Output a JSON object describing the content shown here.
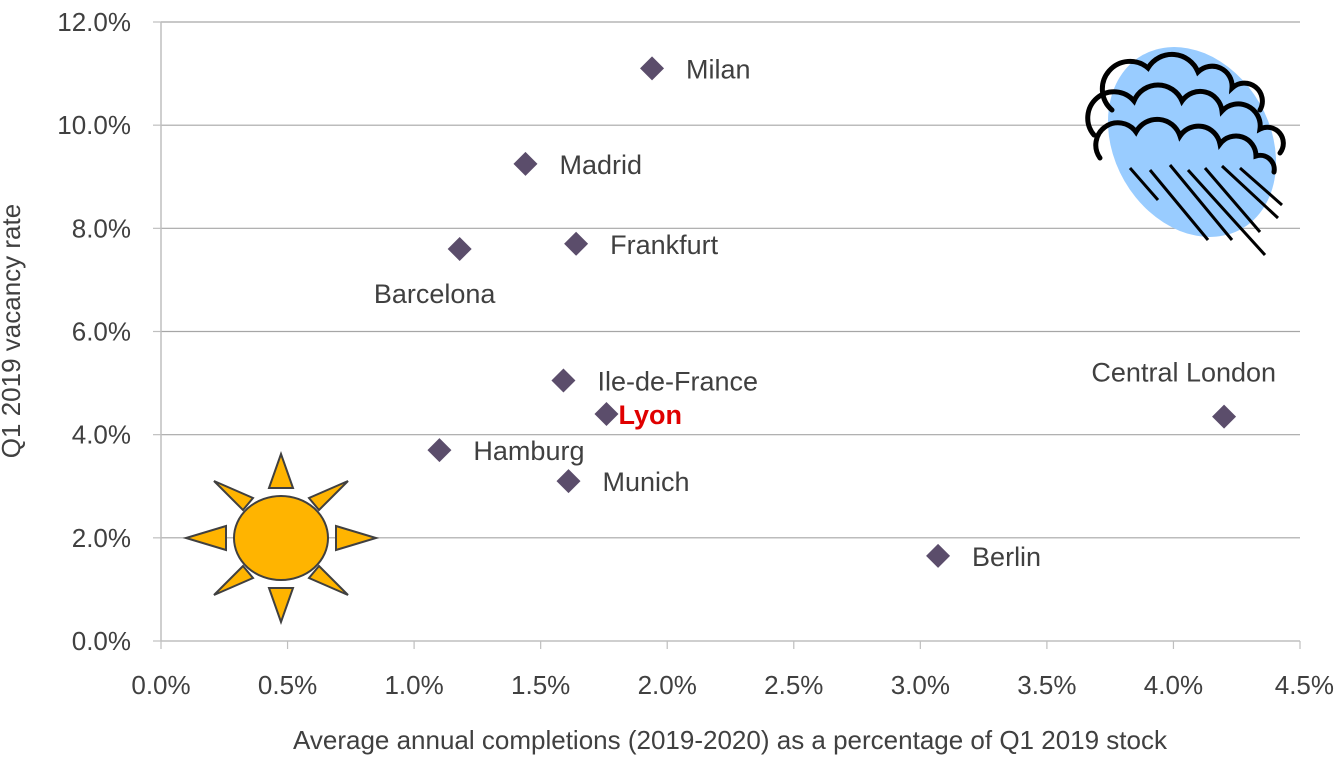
{
  "chart_data": {
    "type": "scatter",
    "xlabel": "Average annual completions (2019-2020) as a percentage of Q1 2019 stock",
    "ylabel": "Q1 2019 vacancy rate",
    "xlim": [
      0,
      4.5
    ],
    "ylim": [
      0,
      12
    ],
    "x_ticks": [
      0,
      0.5,
      1,
      1.5,
      2,
      2.5,
      3,
      3.5,
      4,
      4.5
    ],
    "x_tick_labels": [
      "0.0%",
      "0.5%",
      "1.0%",
      "1.5%",
      "2.0%",
      "2.5%",
      "3.0%",
      "3.5%",
      "4.0%",
      "4.5%"
    ],
    "y_ticks": [
      0,
      2,
      4,
      6,
      8,
      10,
      12
    ],
    "y_tick_labels": [
      "0.0%",
      "2.0%",
      "4.0%",
      "6.0%",
      "8.0%",
      "10.0%",
      "12.0%"
    ],
    "grid": "horizontal",
    "marker": "diamond",
    "marker_color": "#5b4d6b",
    "highlight_color": "#e00000",
    "points": [
      {
        "label": "Milan",
        "x": 1.94,
        "y": 11.1,
        "label_pos": "right"
      },
      {
        "label": "Madrid",
        "x": 1.44,
        "y": 9.25,
        "label_pos": "right"
      },
      {
        "label": "Frankfurt",
        "x": 1.64,
        "y": 7.7,
        "label_pos": "right"
      },
      {
        "label": "Barcelona",
        "x": 1.18,
        "y": 7.6,
        "label_pos": "below"
      },
      {
        "label": "Ile-de-France",
        "x": 1.59,
        "y": 5.05,
        "label_pos": "right"
      },
      {
        "label": "Lyon",
        "x": 1.76,
        "y": 4.4,
        "label_pos": "right",
        "highlight": true
      },
      {
        "label": "Central London",
        "x": 4.2,
        "y": 4.35,
        "label_pos": "above-left"
      },
      {
        "label": "Hamburg",
        "x": 1.1,
        "y": 3.7,
        "label_pos": "right"
      },
      {
        "label": "Munich",
        "x": 1.61,
        "y": 3.1,
        "label_pos": "right"
      },
      {
        "label": "Berlin",
        "x": 3.07,
        "y": 1.65,
        "label_pos": "right"
      }
    ],
    "decorations": [
      {
        "icon": "sun-icon",
        "color": "#ffb400"
      },
      {
        "icon": "rain-cloud-icon",
        "color": "#99ccff"
      }
    ]
  }
}
